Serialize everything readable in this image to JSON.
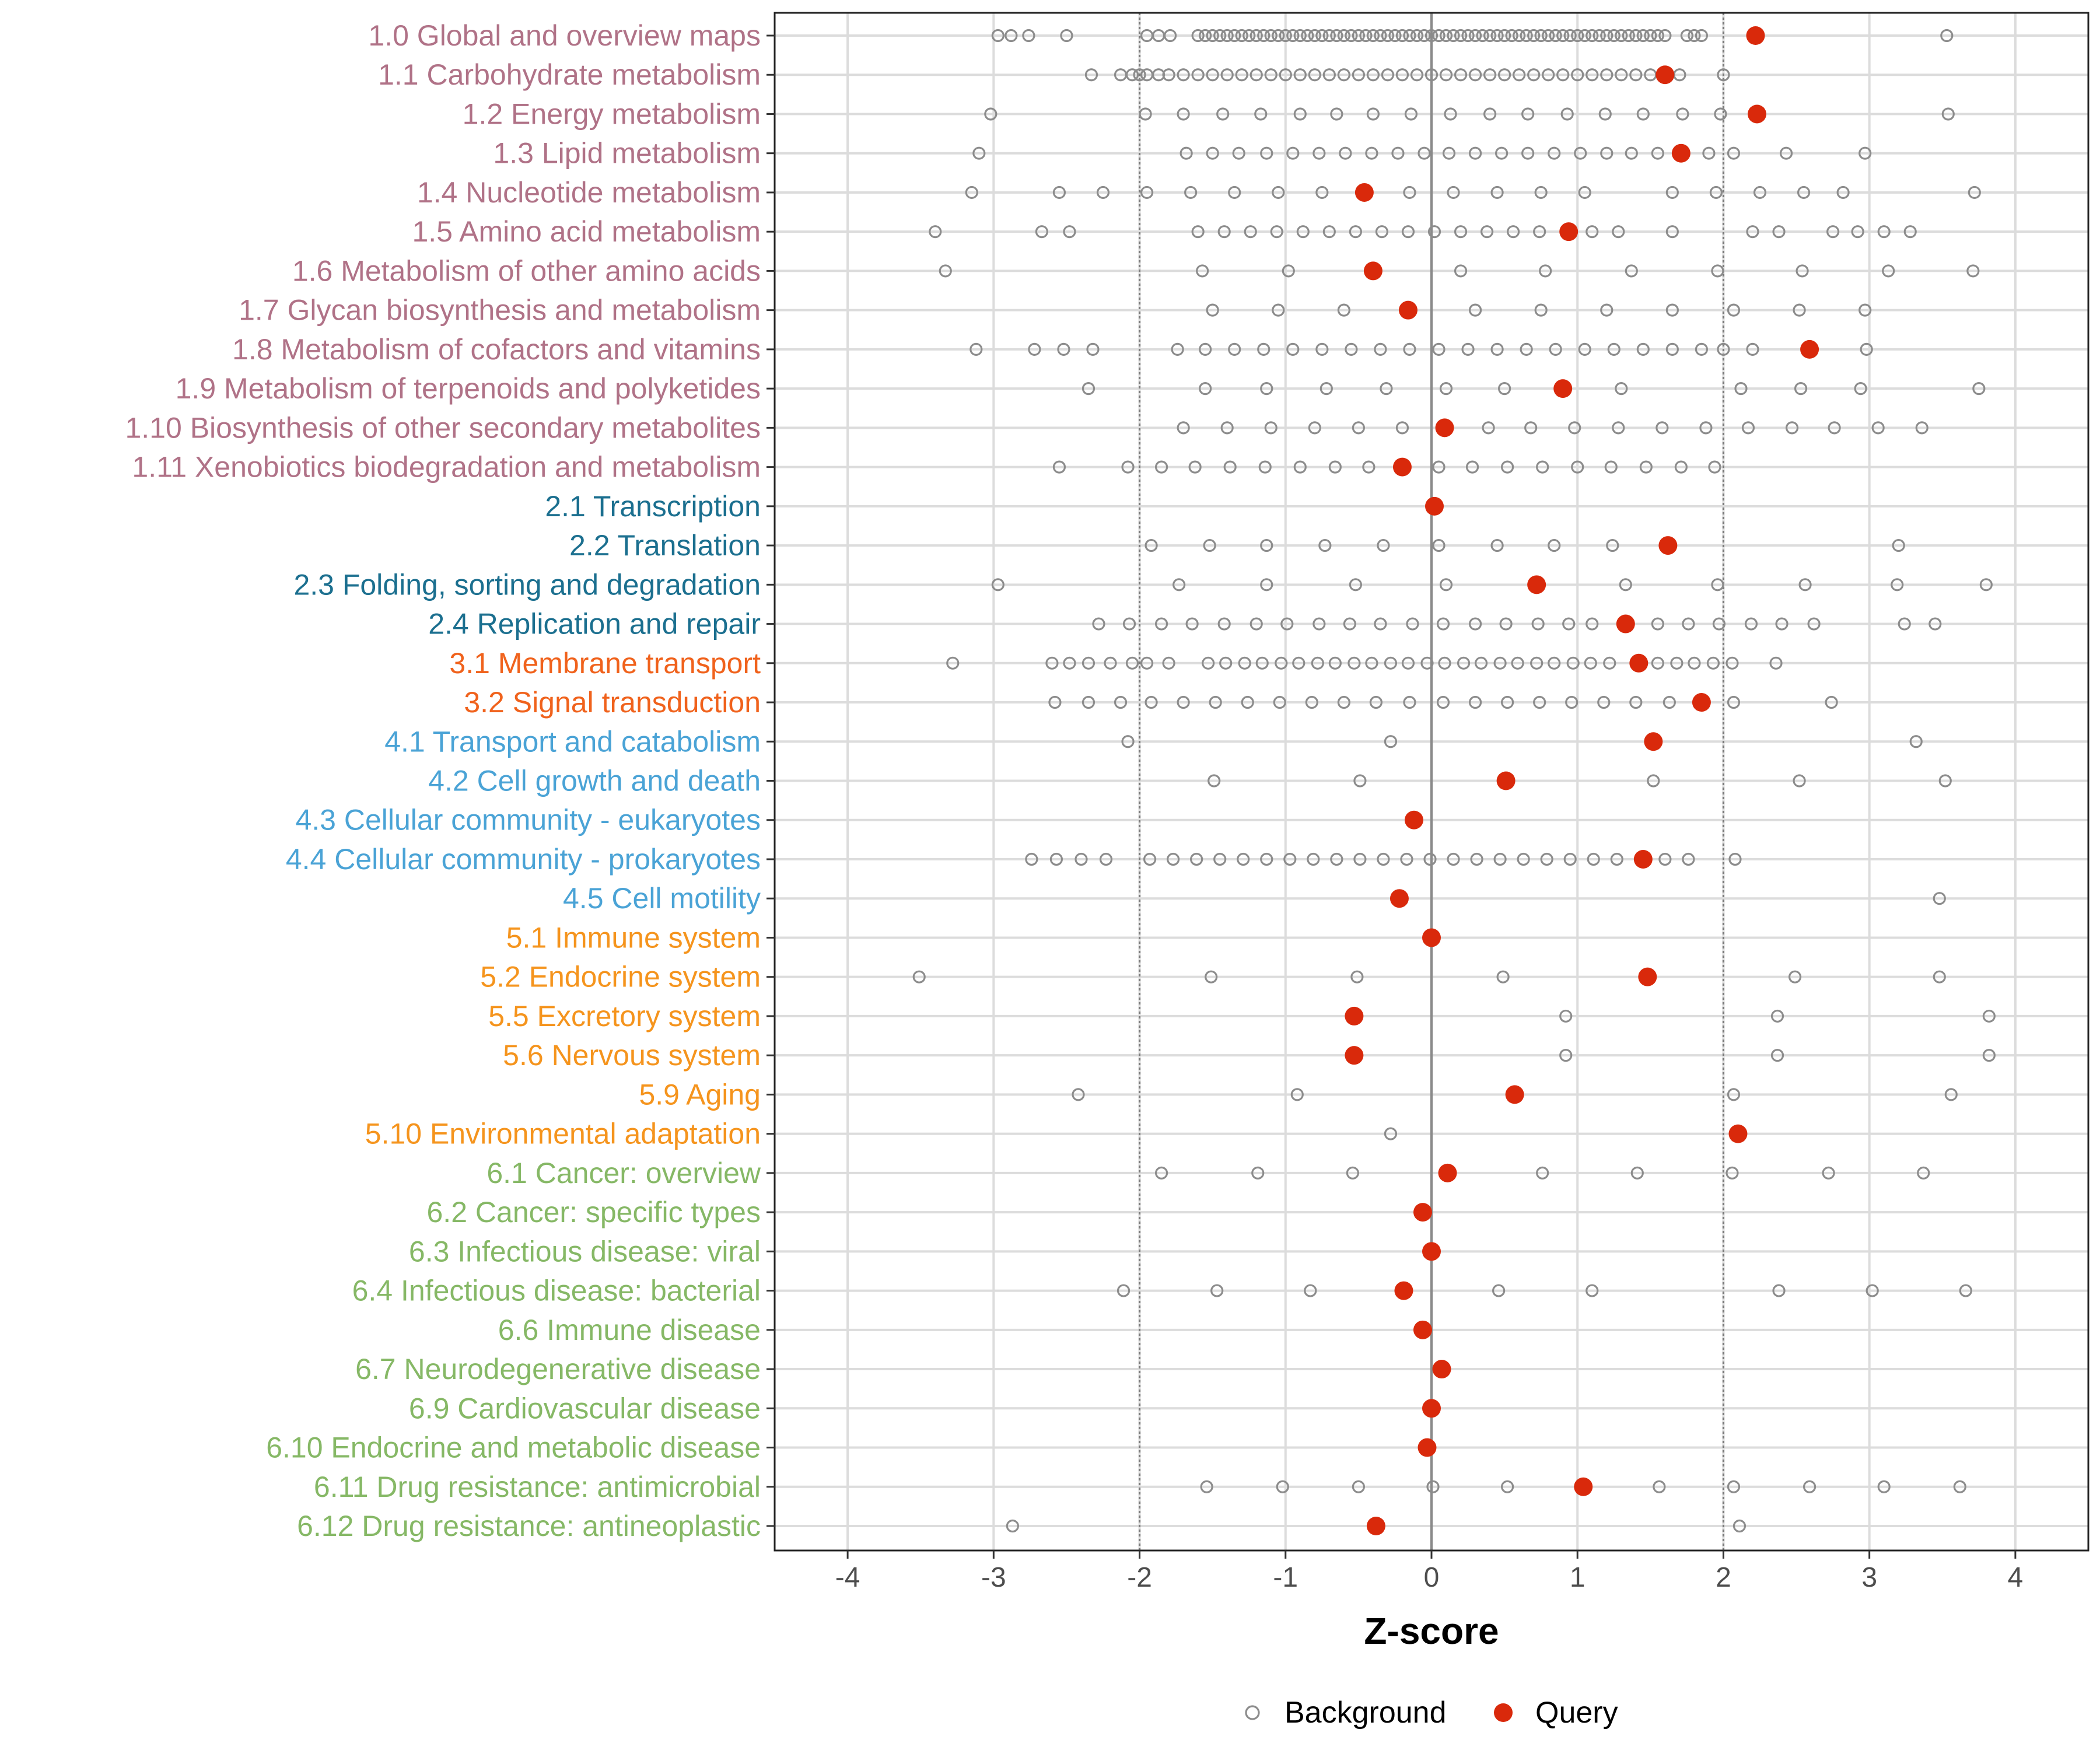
{
  "chart_data": {
    "type": "scatter",
    "xlabel": "Z-score",
    "xlim": [
      -4.5,
      4.5
    ],
    "xticks": [
      -4,
      -3,
      -2,
      -1,
      0,
      1,
      2,
      3,
      4
    ],
    "xtick_labels": [
      "-4",
      "-3",
      "-2",
      "-1",
      "0",
      "1",
      "2",
      "3",
      "4"
    ],
    "reference_lines": [
      -2,
      0,
      2
    ],
    "grid": true,
    "legend": {
      "placement": "bottom",
      "entries": [
        {
          "name": "Background",
          "marker": "open-circle",
          "color": "#8c8c8c"
        },
        {
          "name": "Query",
          "marker": "filled-circle",
          "color": "#d9290b"
        }
      ]
    },
    "group_colors": {
      "1": "#b07287",
      "2": "#1b6f8f",
      "3": "#f0621c",
      "4": "#4aa3d6",
      "5": "#f5941d",
      "6": "#86b866"
    },
    "categories": [
      {
        "label": "1.0 Global and overview maps",
        "group": "1",
        "query": 2.22,
        "bg": [
          -2.97,
          -2.88,
          -2.76,
          -2.5,
          -1.95,
          -1.87,
          -1.79,
          -1.6,
          -1.55,
          -1.5,
          -1.45,
          -1.4,
          -1.35,
          -1.3,
          -1.25,
          -1.2,
          -1.15,
          -1.1,
          -1.05,
          -1.0,
          -0.95,
          -0.9,
          -0.85,
          -0.8,
          -0.75,
          -0.7,
          -0.65,
          -0.6,
          -0.55,
          -0.5,
          -0.45,
          -0.4,
          -0.35,
          -0.3,
          -0.25,
          -0.2,
          -0.15,
          -0.1,
          -0.05,
          0.0,
          0.05,
          0.1,
          0.15,
          0.2,
          0.25,
          0.3,
          0.35,
          0.4,
          0.45,
          0.5,
          0.55,
          0.6,
          0.65,
          0.7,
          0.75,
          0.8,
          0.85,
          0.9,
          0.95,
          1.0,
          1.05,
          1.1,
          1.15,
          1.2,
          1.25,
          1.3,
          1.35,
          1.4,
          1.45,
          1.5,
          1.55,
          1.6,
          1.75,
          1.8,
          1.85,
          3.53
        ]
      },
      {
        "label": "1.1 Carbohydrate metabolism",
        "group": "1",
        "query": 1.6,
        "bg": [
          -2.33,
          -2.13,
          -2.05,
          -2.0,
          -1.95,
          -1.87,
          -1.8,
          -1.7,
          -1.6,
          -1.5,
          -1.4,
          -1.3,
          -1.2,
          -1.1,
          -1.0,
          -0.9,
          -0.8,
          -0.7,
          -0.6,
          -0.5,
          -0.4,
          -0.3,
          -0.2,
          -0.1,
          0.0,
          0.1,
          0.2,
          0.3,
          0.4,
          0.5,
          0.6,
          0.7,
          0.8,
          0.9,
          1.0,
          1.1,
          1.2,
          1.3,
          1.4,
          1.5,
          1.7,
          2.0
        ]
      },
      {
        "label": "1.2 Energy metabolism",
        "group": "1",
        "query": 2.23,
        "bg": [
          -3.02,
          -1.96,
          -1.7,
          -1.43,
          -1.17,
          -0.9,
          -0.65,
          -0.4,
          -0.14,
          0.13,
          0.4,
          0.66,
          0.93,
          1.19,
          1.45,
          1.72,
          1.98,
          3.54
        ]
      },
      {
        "label": "1.3 Lipid metabolism",
        "group": "1",
        "query": 1.71,
        "bg": [
          -3.1,
          -1.68,
          -1.5,
          -1.32,
          -1.13,
          -0.95,
          -0.77,
          -0.59,
          -0.41,
          -0.23,
          -0.05,
          0.12,
          0.3,
          0.48,
          0.66,
          0.84,
          1.02,
          1.2,
          1.37,
          1.55,
          1.9,
          2.07,
          2.43,
          2.97
        ]
      },
      {
        "label": "1.4 Nucleotide metabolism",
        "group": "1",
        "query": -0.46,
        "bg": [
          -3.15,
          -2.55,
          -2.25,
          -1.95,
          -1.65,
          -1.35,
          -1.05,
          -0.75,
          -0.15,
          0.15,
          0.45,
          0.75,
          1.05,
          1.65,
          1.95,
          2.25,
          2.55,
          2.82,
          3.72
        ]
      },
      {
        "label": "1.5 Amino acid metabolism",
        "group": "1",
        "query": 0.94,
        "bg": [
          -3.4,
          -2.67,
          -2.48,
          -1.6,
          -1.42,
          -1.24,
          -1.06,
          -0.88,
          -0.7,
          -0.52,
          -0.34,
          -0.16,
          0.02,
          0.2,
          0.38,
          0.56,
          0.74,
          1.1,
          1.28,
          1.65,
          2.2,
          2.38,
          2.75,
          2.92,
          3.1,
          3.28
        ]
      },
      {
        "label": "1.6 Metabolism of other amino acids",
        "group": "1",
        "query": -0.4,
        "bg": [
          -3.33,
          -1.57,
          -0.98,
          0.2,
          0.78,
          1.37,
          1.96,
          2.54,
          3.13,
          3.71
        ]
      },
      {
        "label": "1.7 Glycan biosynthesis and metabolism",
        "group": "1",
        "query": -0.16,
        "bg": [
          -1.5,
          -1.05,
          -0.6,
          0.3,
          0.75,
          1.2,
          1.65,
          2.07,
          2.52,
          2.97
        ]
      },
      {
        "label": "1.8 Metabolism of cofactors and vitamins",
        "group": "1",
        "query": 2.59,
        "bg": [
          -3.12,
          -2.72,
          -2.52,
          -2.32,
          -1.74,
          -1.55,
          -1.35,
          -1.15,
          -0.95,
          -0.75,
          -0.55,
          -0.35,
          -0.15,
          0.05,
          0.25,
          0.45,
          0.65,
          0.85,
          1.05,
          1.25,
          1.45,
          1.65,
          1.85,
          2.0,
          2.2,
          2.98
        ]
      },
      {
        "label": "1.9 Metabolism of terpenoids and polyketides",
        "group": "1",
        "query": 0.9,
        "bg": [
          -2.35,
          -1.55,
          -1.13,
          -0.72,
          -0.31,
          0.1,
          0.5,
          1.3,
          2.12,
          2.53,
          2.94,
          3.75
        ]
      },
      {
        "label": "1.10 Biosynthesis of other secondary metabolites",
        "group": "1",
        "query": 0.09,
        "bg": [
          -1.7,
          -1.4,
          -1.1,
          -0.8,
          -0.5,
          -0.2,
          0.39,
          0.68,
          0.98,
          1.28,
          1.58,
          1.88,
          2.17,
          2.47,
          2.76,
          3.06,
          3.36
        ]
      },
      {
        "label": "1.11 Xenobiotics biodegradation and metabolism",
        "group": "1",
        "query": -0.2,
        "bg": [
          -2.55,
          -2.08,
          -1.85,
          -1.62,
          -1.38,
          -1.14,
          -0.9,
          -0.66,
          -0.43,
          0.05,
          0.28,
          0.52,
          0.76,
          1.0,
          1.23,
          1.47,
          1.71,
          1.94
        ]
      },
      {
        "label": "2.1 Transcription",
        "group": "2",
        "query": 0.02,
        "bg": []
      },
      {
        "label": "2.2 Translation",
        "group": "2",
        "query": 1.62,
        "bg": [
          -1.92,
          -1.52,
          -1.13,
          -0.73,
          -0.33,
          0.05,
          0.45,
          0.84,
          1.24,
          3.2
        ]
      },
      {
        "label": "2.3 Folding, sorting and degradation",
        "group": "2",
        "query": 0.72,
        "bg": [
          -2.97,
          -1.73,
          -1.13,
          -0.52,
          0.1,
          1.33,
          1.96,
          2.56,
          3.19,
          3.8
        ]
      },
      {
        "label": "2.4 Replication and repair",
        "group": "2",
        "query": 1.33,
        "bg": [
          -2.28,
          -2.07,
          -1.85,
          -1.64,
          -1.42,
          -1.2,
          -0.99,
          -0.77,
          -0.56,
          -0.35,
          -0.13,
          0.08,
          0.3,
          0.51,
          0.73,
          0.94,
          1.1,
          1.55,
          1.76,
          1.97,
          2.19,
          2.4,
          2.62,
          3.24,
          3.45
        ]
      },
      {
        "label": "3.1 Membrane transport",
        "group": "3",
        "query": 1.42,
        "bg": [
          -3.28,
          -2.6,
          -2.48,
          -2.35,
          -2.2,
          -2.05,
          -1.95,
          -1.8,
          -1.53,
          -1.41,
          -1.28,
          -1.16,
          -1.03,
          -0.91,
          -0.78,
          -0.66,
          -0.53,
          -0.41,
          -0.28,
          -0.16,
          -0.03,
          0.09,
          0.22,
          0.34,
          0.47,
          0.59,
          0.72,
          0.84,
          0.97,
          1.09,
          1.22,
          1.55,
          1.68,
          1.8,
          1.93,
          2.06,
          2.36
        ]
      },
      {
        "label": "3.2 Signal transduction",
        "group": "3",
        "query": 1.85,
        "bg": [
          -2.58,
          -2.35,
          -2.13,
          -1.92,
          -1.7,
          -1.48,
          -1.26,
          -1.04,
          -0.82,
          -0.6,
          -0.38,
          -0.15,
          0.08,
          0.3,
          0.52,
          0.74,
          0.96,
          1.18,
          1.4,
          1.63,
          2.07,
          2.74
        ]
      },
      {
        "label": "4.1 Transport and catabolism",
        "group": "4",
        "query": 1.52,
        "bg": [
          -2.08,
          -0.28,
          3.32
        ]
      },
      {
        "label": "4.2 Cell growth and death",
        "group": "4",
        "query": 0.51,
        "bg": [
          -1.49,
          -0.49,
          1.52,
          2.52,
          3.52
        ]
      },
      {
        "label": "4.3 Cellular community - eukaryotes",
        "group": "4",
        "query": -0.12,
        "bg": []
      },
      {
        "label": "4.4 Cellular community - prokaryotes",
        "group": "4",
        "query": 1.45,
        "bg": [
          -2.74,
          -2.57,
          -2.4,
          -2.23,
          -1.93,
          -1.77,
          -1.61,
          -1.45,
          -1.29,
          -1.13,
          -0.97,
          -0.81,
          -0.65,
          -0.49,
          -0.33,
          -0.17,
          -0.01,
          0.15,
          0.31,
          0.47,
          0.63,
          0.79,
          0.95,
          1.11,
          1.27,
          1.6,
          1.76,
          2.08
        ]
      },
      {
        "label": "4.5 Cell motility",
        "group": "4",
        "query": -0.22,
        "bg": [
          3.48
        ]
      },
      {
        "label": "5.1 Immune system",
        "group": "5",
        "query": 0.0,
        "bg": []
      },
      {
        "label": "5.2 Endocrine system",
        "group": "5",
        "query": 1.48,
        "bg": [
          -3.51,
          -1.51,
          -0.51,
          0.49,
          2.49,
          3.48
        ]
      },
      {
        "label": "5.5 Excretory system",
        "group": "5",
        "query": -0.53,
        "bg": [
          0.92,
          2.37,
          3.82
        ]
      },
      {
        "label": "5.6 Nervous system",
        "group": "5",
        "query": -0.53,
        "bg": [
          0.92,
          2.37,
          3.82
        ]
      },
      {
        "label": "5.9 Aging",
        "group": "5",
        "query": 0.57,
        "bg": [
          -2.42,
          -0.92,
          2.07,
          3.56
        ]
      },
      {
        "label": "5.10 Environmental adaptation",
        "group": "5",
        "query": 2.1,
        "bg": [
          -0.28
        ]
      },
      {
        "label": "6.1 Cancer: overview",
        "group": "6",
        "query": 0.11,
        "bg": [
          -1.85,
          -1.19,
          -0.54,
          0.76,
          1.41,
          2.06,
          2.72,
          3.37
        ]
      },
      {
        "label": "6.2 Cancer: specific types",
        "group": "6",
        "query": -0.06,
        "bg": []
      },
      {
        "label": "6.3 Infectious disease: viral",
        "group": "6",
        "query": 0.0,
        "bg": []
      },
      {
        "label": "6.4 Infectious disease: bacterial",
        "group": "6",
        "query": -0.19,
        "bg": [
          -2.11,
          -1.47,
          -0.83,
          0.46,
          1.1,
          2.38,
          3.02,
          3.66
        ]
      },
      {
        "label": "6.6 Immune disease",
        "group": "6",
        "query": -0.06,
        "bg": []
      },
      {
        "label": "6.7 Neurodegenerative disease",
        "group": "6",
        "query": 0.07,
        "bg": []
      },
      {
        "label": "6.9 Cardiovascular disease",
        "group": "6",
        "query": 0.0,
        "bg": []
      },
      {
        "label": "6.10 Endocrine and metabolic disease",
        "group": "6",
        "query": -0.03,
        "bg": []
      },
      {
        "label": "6.11 Drug resistance: antimicrobial",
        "group": "6",
        "query": 1.04,
        "bg": [
          -1.54,
          -1.02,
          -0.5,
          0.01,
          0.52,
          1.56,
          2.07,
          2.59,
          3.1,
          3.62
        ]
      },
      {
        "label": "6.12 Drug resistance: antineoplastic",
        "group": "6",
        "query": -0.38,
        "bg": [
          -2.87,
          2.11
        ]
      }
    ]
  }
}
